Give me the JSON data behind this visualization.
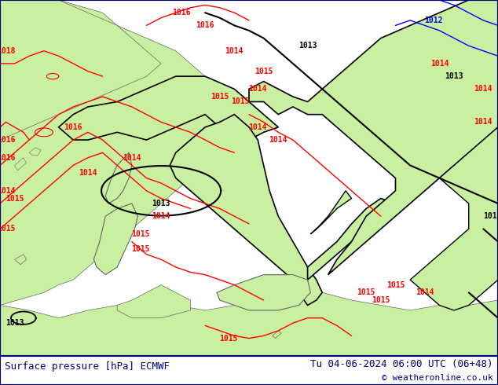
{
  "fig_width": 6.34,
  "fig_height": 4.9,
  "dpi": 100,
  "land_color": "#c8f0a0",
  "sea_color": "#e0e0e8",
  "bottom_bar_color": "#ffffff",
  "left_label": "Surface pressure [hPa] ECMWF",
  "right_label": "Tu 04-06-2024 06:00 UTC (06+48)",
  "copyright_label": "© weatheronline.co.uk",
  "label_color": "#000080",
  "label_fontsize": 9,
  "copyright_fontsize": 8,
  "border_color": "#000080",
  "border_linewidth": 1.5,
  "coast_color": "#666666",
  "border_poly_color": "#000000",
  "red": "#ff0000",
  "black": "#000000",
  "blue": "#0000ff"
}
